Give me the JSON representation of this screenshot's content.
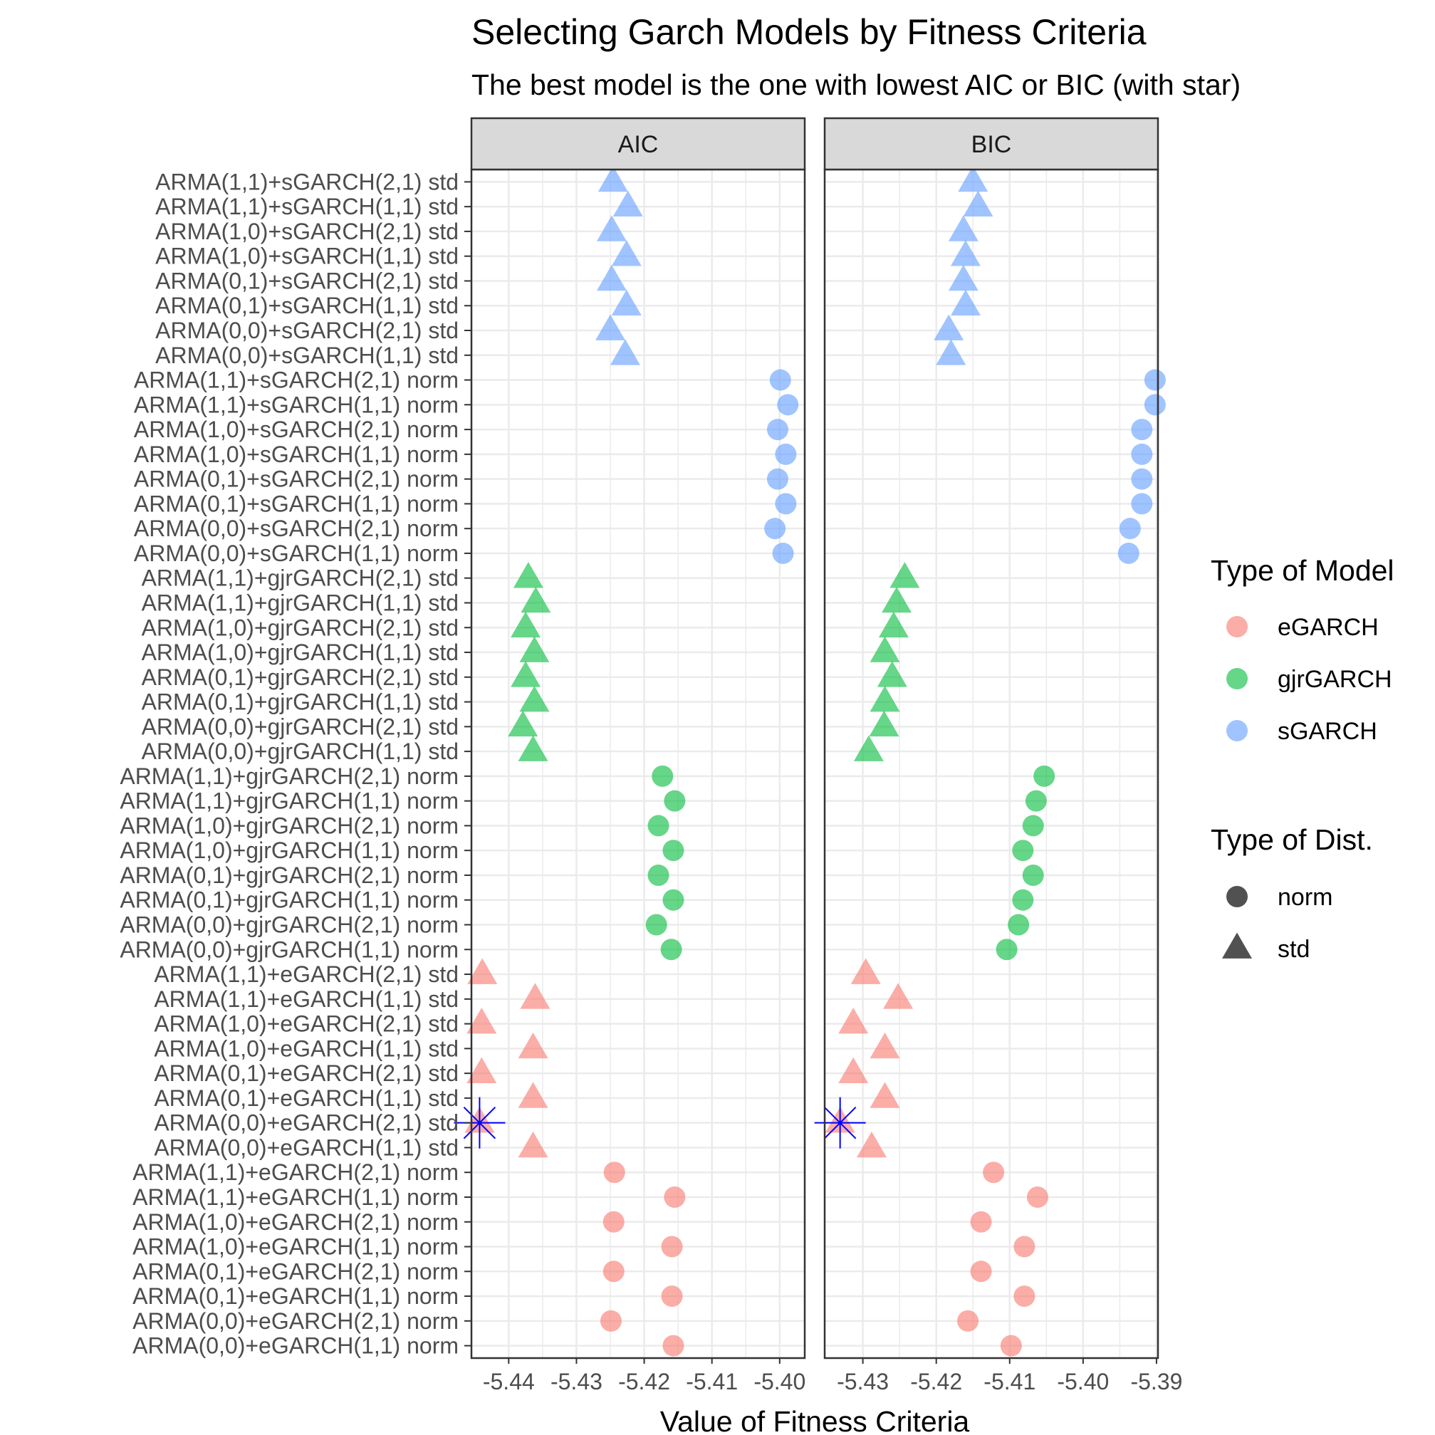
{
  "chart_data": {
    "type": "scatter",
    "title": "Selecting Garch Models by Fitness Criteria",
    "subtitle": "The best model is the one with lowest AIC or BIC (with star)",
    "xlabel": "Value of Fitness Criteria",
    "ylabel": "",
    "grid": true,
    "legend_position": "right",
    "categories": [
      "ARMA(0,0)+eGARCH(1,1) norm",
      "ARMA(0,0)+eGARCH(2,1) norm",
      "ARMA(0,1)+eGARCH(1,1) norm",
      "ARMA(0,1)+eGARCH(2,1) norm",
      "ARMA(1,0)+eGARCH(1,1) norm",
      "ARMA(1,0)+eGARCH(2,1) norm",
      "ARMA(1,1)+eGARCH(1,1) norm",
      "ARMA(1,1)+eGARCH(2,1) norm",
      "ARMA(0,0)+eGARCH(1,1) std",
      "ARMA(0,0)+eGARCH(2,1) std",
      "ARMA(0,1)+eGARCH(1,1) std",
      "ARMA(0,1)+eGARCH(2,1) std",
      "ARMA(1,0)+eGARCH(1,1) std",
      "ARMA(1,0)+eGARCH(2,1) std",
      "ARMA(1,1)+eGARCH(1,1) std",
      "ARMA(1,1)+eGARCH(2,1) std",
      "ARMA(0,0)+gjrGARCH(1,1) norm",
      "ARMA(0,0)+gjrGARCH(2,1) norm",
      "ARMA(0,1)+gjrGARCH(1,1) norm",
      "ARMA(0,1)+gjrGARCH(2,1) norm",
      "ARMA(1,0)+gjrGARCH(1,1) norm",
      "ARMA(1,0)+gjrGARCH(2,1) norm",
      "ARMA(1,1)+gjrGARCH(1,1) norm",
      "ARMA(1,1)+gjrGARCH(2,1) norm",
      "ARMA(0,0)+gjrGARCH(1,1) std",
      "ARMA(0,0)+gjrGARCH(2,1) std",
      "ARMA(0,1)+gjrGARCH(1,1) std",
      "ARMA(0,1)+gjrGARCH(2,1) std",
      "ARMA(1,0)+gjrGARCH(1,1) std",
      "ARMA(1,0)+gjrGARCH(2,1) std",
      "ARMA(1,1)+gjrGARCH(1,1) std",
      "ARMA(1,1)+gjrGARCH(2,1) std",
      "ARMA(0,0)+sGARCH(1,1) norm",
      "ARMA(0,0)+sGARCH(2,1) norm",
      "ARMA(0,1)+sGARCH(1,1) norm",
      "ARMA(0,1)+sGARCH(2,1) norm",
      "ARMA(1,0)+sGARCH(1,1) norm",
      "ARMA(1,0)+sGARCH(2,1) norm",
      "ARMA(1,1)+sGARCH(1,1) norm",
      "ARMA(1,1)+sGARCH(2,1) norm",
      "ARMA(0,0)+sGARCH(1,1) std",
      "ARMA(0,0)+sGARCH(2,1) std",
      "ARMA(0,1)+sGARCH(1,1) std",
      "ARMA(0,1)+sGARCH(2,1) std",
      "ARMA(1,0)+sGARCH(1,1) std",
      "ARMA(1,0)+sGARCH(2,1) std",
      "ARMA(1,1)+sGARCH(1,1) std",
      "ARMA(1,1)+sGARCH(2,1) std"
    ],
    "model_type_per_category": [
      "eGARCH",
      "eGARCH",
      "eGARCH",
      "eGARCH",
      "eGARCH",
      "eGARCH",
      "eGARCH",
      "eGARCH",
      "eGARCH",
      "eGARCH",
      "eGARCH",
      "eGARCH",
      "eGARCH",
      "eGARCH",
      "eGARCH",
      "eGARCH",
      "gjrGARCH",
      "gjrGARCH",
      "gjrGARCH",
      "gjrGARCH",
      "gjrGARCH",
      "gjrGARCH",
      "gjrGARCH",
      "gjrGARCH",
      "gjrGARCH",
      "gjrGARCH",
      "gjrGARCH",
      "gjrGARCH",
      "gjrGARCH",
      "gjrGARCH",
      "gjrGARCH",
      "gjrGARCH",
      "sGARCH",
      "sGARCH",
      "sGARCH",
      "sGARCH",
      "sGARCH",
      "sGARCH",
      "sGARCH",
      "sGARCH",
      "sGARCH",
      "sGARCH",
      "sGARCH",
      "sGARCH",
      "sGARCH",
      "sGARCH",
      "sGARCH",
      "sGARCH"
    ],
    "dist_type_per_category": [
      "norm",
      "norm",
      "norm",
      "norm",
      "norm",
      "norm",
      "norm",
      "norm",
      "std",
      "std",
      "std",
      "std",
      "std",
      "std",
      "std",
      "std",
      "norm",
      "norm",
      "norm",
      "norm",
      "norm",
      "norm",
      "norm",
      "norm",
      "std",
      "std",
      "std",
      "std",
      "std",
      "std",
      "std",
      "std",
      "norm",
      "norm",
      "norm",
      "norm",
      "norm",
      "norm",
      "norm",
      "norm",
      "std",
      "std",
      "std",
      "std",
      "std",
      "std",
      "std",
      "std"
    ],
    "panels": [
      {
        "strip": "AIC",
        "xlim": [
          -5.4455,
          -5.3963
        ],
        "xticks": [
          -5.44,
          -5.43,
          -5.42,
          -5.41,
          -5.4
        ],
        "xtick_labels": [
          "-5.44",
          "-5.43",
          "-5.42",
          "-5.41",
          "-5.40"
        ],
        "values": [
          -5.4157,
          -5.4249,
          -5.4159,
          -5.4245,
          -5.4159,
          -5.4245,
          -5.4155,
          -5.4244,
          -5.4364,
          -5.4443,
          -5.4364,
          -5.444,
          -5.4364,
          -5.444,
          -5.4361,
          -5.4439,
          -5.416,
          -5.4182,
          -5.4157,
          -5.4179,
          -5.4157,
          -5.4179,
          -5.4155,
          -5.4173,
          -5.4364,
          -5.4379,
          -5.4362,
          -5.4375,
          -5.4362,
          -5.4375,
          -5.436,
          -5.4371,
          -5.3995,
          -5.4007,
          -5.3991,
          -5.4003,
          -5.3991,
          -5.4003,
          -5.3988,
          -5.3999,
          -5.4228,
          -5.425,
          -5.4226,
          -5.4248,
          -5.4226,
          -5.4248,
          -5.4224,
          -5.4246
        ],
        "best_index": 9
      },
      {
        "strip": "BIC",
        "xlim": [
          -5.4352,
          -5.3898
        ],
        "xticks": [
          -5.43,
          -5.42,
          -5.41,
          -5.4,
          -5.39
        ],
        "xtick_labels": [
          "-5.43",
          "-5.42",
          "-5.41",
          "-5.40",
          "-5.39"
        ],
        "values": [
          -5.4098,
          -5.4157,
          -5.408,
          -5.4139,
          -5.408,
          -5.4139,
          -5.4062,
          -5.4122,
          -5.4288,
          -5.4331,
          -5.427,
          -5.4313,
          -5.427,
          -5.4313,
          -5.4252,
          -5.4296,
          -5.4104,
          -5.4088,
          -5.4082,
          -5.4068,
          -5.4082,
          -5.4068,
          -5.4064,
          -5.4053,
          -5.4292,
          -5.4271,
          -5.427,
          -5.426,
          -5.427,
          -5.4258,
          -5.4254,
          -5.4243,
          -5.3938,
          -5.3936,
          -5.392,
          -5.392,
          -5.392,
          -5.392,
          -5.3902,
          -5.3902,
          -5.418,
          -5.4183,
          -5.416,
          -5.4163,
          -5.416,
          -5.4163,
          -5.4143,
          -5.415
        ],
        "best_index": 9
      }
    ],
    "legends": [
      {
        "title": "Type of Model",
        "entries": [
          {
            "label": "eGARCH",
            "color": "#F8766D"
          },
          {
            "label": "gjrGARCH",
            "color": "#00BA38"
          },
          {
            "label": "sGARCH",
            "color": "#619CFF"
          }
        ]
      },
      {
        "title": "Type of Dist.",
        "entries": [
          {
            "label": "norm",
            "shape": "circle"
          },
          {
            "label": "std",
            "shape": "triangle"
          }
        ]
      }
    ],
    "colors": {
      "eGARCH": "#F8766D",
      "gjrGARCH": "#00BA38",
      "sGARCH": "#619CFF",
      "star": "#0000FF",
      "strip_fill": "#D9D9D9",
      "grid": "#EBEBEB"
    }
  }
}
